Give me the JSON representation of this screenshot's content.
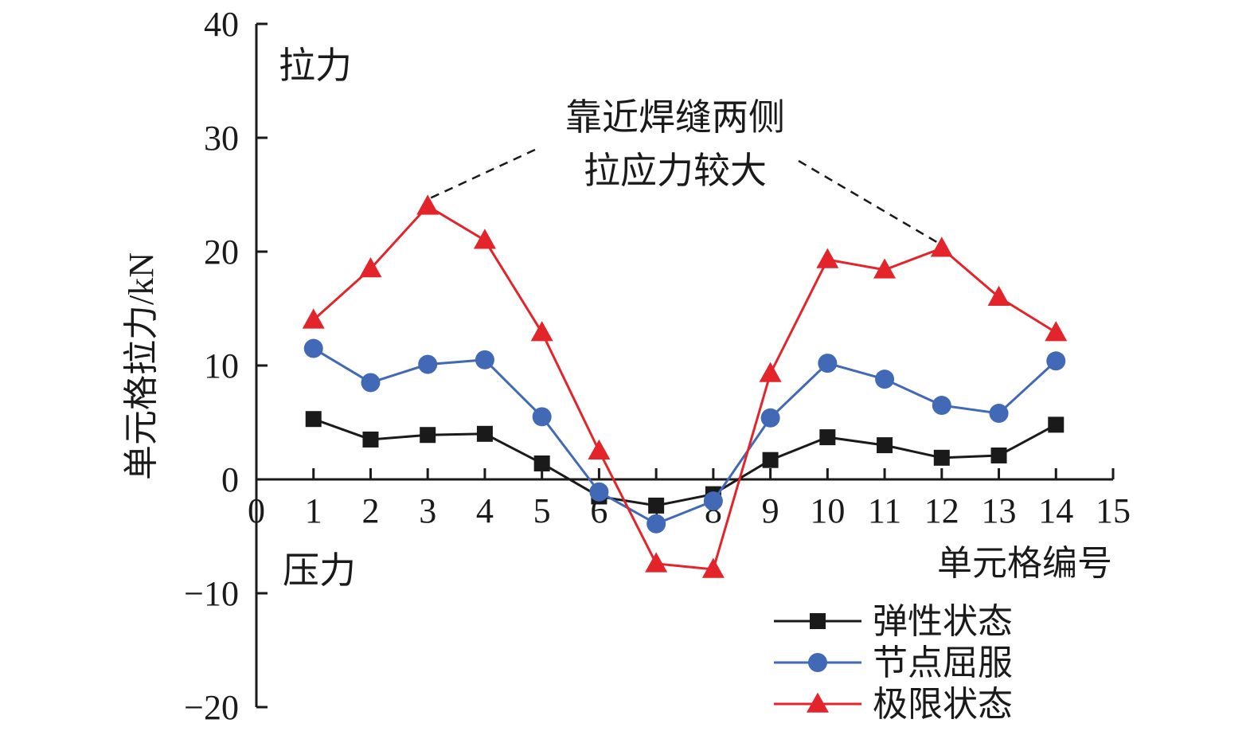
{
  "chart_data": {
    "type": "line",
    "xlabel": "单元格编号",
    "ylabel": "单元格拉力/kN",
    "xlim": [
      0,
      15
    ],
    "ylim": [
      -20,
      40
    ],
    "x_ticks": [
      "0",
      "1",
      "2",
      "3",
      "4",
      "5",
      "6",
      "7",
      "8",
      "9",
      "10",
      "11",
      "12",
      "13",
      "14",
      "15"
    ],
    "y_ticks": [
      "40",
      "30",
      "20",
      "10",
      "0",
      "−10",
      "−20"
    ],
    "grid": false,
    "legend_position": "bottom-right",
    "annotations": {
      "tension": "拉力",
      "compression": "压力",
      "note_line1": "靠近焊缝两侧",
      "note_line2": "拉应力较大"
    },
    "x": [
      1,
      2,
      3,
      4,
      5,
      6,
      7,
      8,
      9,
      10,
      11,
      12,
      13,
      14
    ],
    "series": [
      {
        "name": "弹性状态",
        "color": "#1a1a1a",
        "marker": "square",
        "values": [
          5.3,
          3.5,
          3.9,
          4.0,
          1.4,
          -1.5,
          -2.3,
          -1.3,
          1.7,
          3.7,
          3.0,
          1.9,
          2.1,
          4.8
        ]
      },
      {
        "name": "节点屈服",
        "color": "#4169b5",
        "marker": "circle",
        "values": [
          11.5,
          8.5,
          10.1,
          10.5,
          5.5,
          -1.1,
          -3.9,
          -1.9,
          5.4,
          10.2,
          8.8,
          6.5,
          5.8,
          10.4
        ]
      },
      {
        "name": "极限状态",
        "color": "#e3242b",
        "marker": "triangle",
        "values": [
          14.0,
          18.5,
          24.0,
          21.0,
          12.9,
          2.5,
          -7.4,
          -7.9,
          9.3,
          19.3,
          18.4,
          20.3,
          16.0,
          12.9
        ]
      }
    ]
  }
}
